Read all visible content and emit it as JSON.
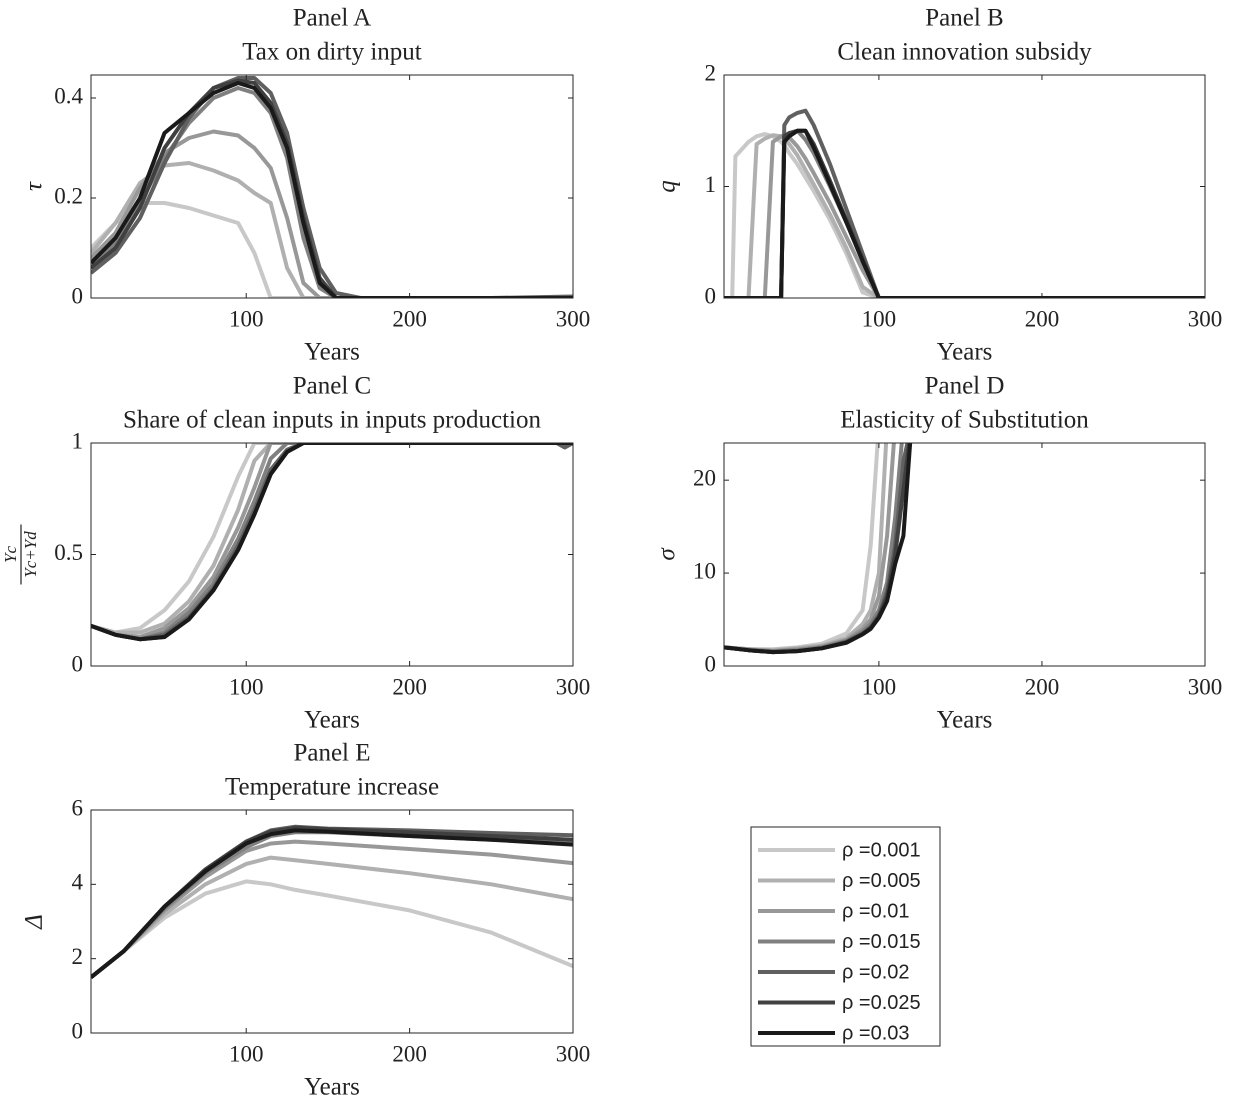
{
  "chart_data": [
    {
      "type": "line",
      "title": "Panel A",
      "subtitle": "Tax on dirty input",
      "xlabel": "Years",
      "ylabel": "τ",
      "x": [
        5,
        20,
        35,
        50,
        65,
        80,
        95,
        105,
        115,
        125,
        135,
        145,
        155,
        170,
        200,
        250,
        300
      ],
      "xlim": [
        5,
        300
      ],
      "xticks": [
        100,
        200,
        300
      ],
      "ylim": [
        0,
        0.446
      ],
      "yticks": [
        0,
        0.2,
        0.4
      ],
      "series": [
        {
          "color": "#c8c8c8",
          "values": [
            0.1,
            0.15,
            0.19,
            0.19,
            0.18,
            0.165,
            0.15,
            0.09,
            0,
            0,
            0,
            0,
            0,
            0,
            0,
            0,
            0
          ]
        },
        {
          "color": "#b0b0b0",
          "values": [
            0.09,
            0.15,
            0.23,
            0.265,
            0.27,
            0.255,
            0.235,
            0.21,
            0.19,
            0.06,
            0,
            0,
            0,
            0,
            0,
            0,
            0
          ]
        },
        {
          "color": "#989898",
          "values": [
            0.08,
            0.13,
            0.22,
            0.29,
            0.32,
            0.333,
            0.325,
            0.3,
            0.26,
            0.16,
            0.03,
            0,
            0,
            0,
            0,
            0,
            0
          ]
        },
        {
          "color": "#808080",
          "values": [
            0.06,
            0.11,
            0.19,
            0.28,
            0.35,
            0.4,
            0.42,
            0.41,
            0.37,
            0.28,
            0.12,
            0.02,
            0,
            0,
            0,
            0,
            0
          ]
        },
        {
          "color": "#606060",
          "values": [
            0.05,
            0.09,
            0.16,
            0.27,
            0.36,
            0.42,
            0.44,
            0.44,
            0.41,
            0.33,
            0.18,
            0.06,
            0.01,
            0,
            0,
            0,
            0.003
          ]
        },
        {
          "color": "#404040",
          "values": [
            0.06,
            0.1,
            0.18,
            0.3,
            0.37,
            0.42,
            0.435,
            0.43,
            0.39,
            0.31,
            0.16,
            0.04,
            0,
            0,
            0,
            0,
            0
          ]
        },
        {
          "color": "#1a1a1a",
          "values": [
            0.07,
            0.12,
            0.2,
            0.33,
            0.37,
            0.41,
            0.43,
            0.42,
            0.38,
            0.3,
            0.15,
            0.03,
            0,
            0,
            0,
            0,
            0
          ]
        }
      ]
    },
    {
      "type": "line",
      "title": "Panel B",
      "subtitle": "Clean innovation subsidy",
      "xlabel": "Years",
      "ylabel": "q",
      "x": [
        5,
        10,
        12,
        20,
        25,
        30,
        35,
        40,
        42,
        45,
        50,
        55,
        60,
        70,
        80,
        90,
        100,
        150,
        200,
        300
      ],
      "xlim": [
        5,
        300
      ],
      "xticks": [
        100,
        200,
        300
      ],
      "ylim": [
        0,
        2
      ],
      "yticks": [
        0,
        1,
        2
      ],
      "series": [
        {
          "color": "#c8c8c8",
          "values": [
            0,
            0,
            1.27,
            1.4,
            1.45,
            1.47,
            1.45,
            1.4,
            1.37,
            1.3,
            1.2,
            1.08,
            0.96,
            0.7,
            0.4,
            0.05,
            0,
            0,
            0,
            0
          ]
        },
        {
          "color": "#b0b0b0",
          "values": [
            0,
            0,
            0,
            0,
            1.38,
            1.43,
            1.46,
            1.45,
            1.43,
            1.38,
            1.28,
            1.15,
            1.02,
            0.75,
            0.45,
            0.1,
            0,
            0,
            0,
            0
          ]
        },
        {
          "color": "#989898",
          "values": [
            0,
            0,
            0,
            0,
            0,
            0,
            1.4,
            1.45,
            1.46,
            1.44,
            1.36,
            1.25,
            1.12,
            0.85,
            0.55,
            0.25,
            0,
            0,
            0,
            0
          ]
        },
        {
          "color": "#808080",
          "values": [
            0,
            0,
            0,
            0,
            0,
            0,
            0,
            0,
            1.45,
            1.47,
            1.5,
            1.42,
            1.3,
            1.0,
            0.68,
            0.35,
            0,
            0,
            0,
            0
          ]
        },
        {
          "color": "#606060",
          "values": [
            0,
            0,
            0,
            0,
            0,
            0,
            0,
            0,
            1.55,
            1.62,
            1.66,
            1.68,
            1.55,
            1.2,
            0.8,
            0.4,
            0,
            0,
            0,
            0
          ]
        },
        {
          "color": "#404040",
          "values": [
            0,
            0,
            0,
            0,
            0,
            0,
            0,
            0,
            1.45,
            1.48,
            1.5,
            1.5,
            1.38,
            1.05,
            0.7,
            0.35,
            0,
            0,
            0,
            0
          ]
        },
        {
          "color": "#1a1a1a",
          "values": [
            0,
            0,
            0,
            0,
            0,
            0,
            0,
            0,
            1.4,
            1.45,
            1.5,
            1.5,
            1.35,
            1.02,
            0.68,
            0.33,
            0,
            0,
            0,
            0
          ]
        }
      ]
    },
    {
      "type": "line",
      "title": "Panel C",
      "subtitle": "Share of clean inputs in inputs production",
      "xlabel": "Years",
      "ylabel_numerator": "Yc",
      "ylabel_denominator": "Yc+Yd",
      "x": [
        5,
        20,
        35,
        50,
        65,
        80,
        95,
        105,
        115,
        125,
        135,
        150,
        200,
        250,
        290,
        295,
        300
      ],
      "xlim": [
        5,
        300
      ],
      "xticks": [
        100,
        200,
        300
      ],
      "ylim": [
        0,
        1
      ],
      "yticks": [
        0,
        0.5,
        1
      ],
      "series": [
        {
          "color": "#c8c8c8",
          "values": [
            0.18,
            0.15,
            0.17,
            0.25,
            0.38,
            0.58,
            0.85,
            1,
            1,
            1,
            1,
            1,
            1,
            1,
            1,
            1,
            1
          ]
        },
        {
          "color": "#b0b0b0",
          "values": [
            0.18,
            0.15,
            0.15,
            0.19,
            0.29,
            0.45,
            0.7,
            0.92,
            1,
            1,
            1,
            1,
            1,
            1,
            1,
            1,
            1
          ]
        },
        {
          "color": "#989898",
          "values": [
            0.18,
            0.14,
            0.13,
            0.17,
            0.26,
            0.4,
            0.62,
            0.8,
            1,
            1,
            1,
            1,
            1,
            1,
            1,
            1,
            1
          ]
        },
        {
          "color": "#808080",
          "values": [
            0.18,
            0.14,
            0.12,
            0.15,
            0.24,
            0.37,
            0.57,
            0.74,
            0.93,
            1,
            1,
            1,
            1,
            1,
            1,
            1,
            1
          ]
        },
        {
          "color": "#606060",
          "values": [
            0.18,
            0.14,
            0.12,
            0.14,
            0.22,
            0.35,
            0.54,
            0.7,
            0.88,
            0.97,
            1,
            1,
            1,
            1,
            1,
            0.98,
            1
          ]
        },
        {
          "color": "#404040",
          "values": [
            0.18,
            0.14,
            0.12,
            0.13,
            0.21,
            0.34,
            0.52,
            0.68,
            0.86,
            0.96,
            1,
            1,
            1,
            1,
            1,
            1,
            1
          ]
        },
        {
          "color": "#1a1a1a",
          "values": [
            0.18,
            0.14,
            0.12,
            0.13,
            0.21,
            0.34,
            0.52,
            0.68,
            0.86,
            0.96,
            1,
            1,
            1,
            1,
            1,
            1,
            1
          ]
        }
      ]
    },
    {
      "type": "line",
      "title": "Panel D",
      "subtitle": "Elasticity of Substitution",
      "xlabel": "Years",
      "ylabel": "σ",
      "x": [
        5,
        20,
        35,
        50,
        65,
        80,
        90,
        95,
        100,
        105,
        110,
        115,
        120,
        125,
        150,
        200,
        300
      ],
      "xlim": [
        5,
        300
      ],
      "xticks": [
        100,
        200,
        300
      ],
      "ylim": [
        0,
        24
      ],
      "yticks": [
        0,
        10,
        20
      ],
      "series": [
        {
          "color": "#c8c8c8",
          "values": [
            2,
            1.8,
            1.8,
            2,
            2.4,
            3.5,
            6,
            13,
            26,
            null,
            null,
            null,
            null,
            null,
            null,
            null,
            null
          ]
        },
        {
          "color": "#b0b0b0",
          "values": [
            2,
            1.8,
            1.7,
            1.9,
            2.2,
            3,
            4.5,
            6,
            10,
            26,
            null,
            null,
            null,
            null,
            null,
            null,
            null
          ]
        },
        {
          "color": "#989898",
          "values": [
            2,
            1.8,
            1.6,
            1.8,
            2.1,
            2.8,
            4,
            5,
            7.5,
            14,
            26,
            null,
            null,
            null,
            null,
            null,
            null
          ]
        },
        {
          "color": "#808080",
          "values": [
            2,
            1.7,
            1.6,
            1.7,
            2,
            2.7,
            3.7,
            4.5,
            6,
            9,
            16,
            26,
            null,
            null,
            null,
            null,
            null
          ]
        },
        {
          "color": "#606060",
          "values": [
            2,
            1.7,
            1.5,
            1.6,
            1.9,
            2.6,
            3.5,
            4.2,
            5.5,
            8,
            13,
            22,
            26,
            null,
            null,
            null,
            null
          ]
        },
        {
          "color": "#404040",
          "values": [
            2,
            1.7,
            1.5,
            1.6,
            1.9,
            2.55,
            3.45,
            4.1,
            5.3,
            7.5,
            12,
            19,
            26,
            null,
            null,
            null,
            null
          ]
        },
        {
          "color": "#1a1a1a",
          "values": [
            2,
            1.7,
            1.5,
            1.6,
            1.9,
            2.5,
            3.4,
            4,
            5.2,
            7,
            11,
            14,
            26,
            null,
            null,
            null,
            null
          ]
        }
      ]
    },
    {
      "type": "line",
      "title": "Panel E",
      "subtitle": "Temperature increase",
      "xlabel": "Years",
      "ylabel": "Δ",
      "x": [
        5,
        25,
        50,
        75,
        100,
        115,
        130,
        150,
        200,
        250,
        300
      ],
      "xlim": [
        5,
        300
      ],
      "xticks": [
        100,
        200,
        300
      ],
      "ylim": [
        0,
        6
      ],
      "yticks": [
        0,
        2,
        4,
        6
      ],
      "series": [
        {
          "name": "ρ =0.001",
          "color": "#c8c8c8",
          "values": [
            1.5,
            2.2,
            3.1,
            3.75,
            4.08,
            4.0,
            3.85,
            3.7,
            3.3,
            2.7,
            1.8
          ]
        },
        {
          "name": "ρ =0.005",
          "color": "#b0b0b0",
          "values": [
            1.5,
            2.2,
            3.2,
            4.0,
            4.55,
            4.72,
            4.65,
            4.55,
            4.3,
            4.0,
            3.6
          ]
        },
        {
          "name": "ρ =0.01",
          "color": "#989898",
          "values": [
            1.5,
            2.2,
            3.3,
            4.2,
            4.9,
            5.1,
            5.15,
            5.1,
            4.95,
            4.8,
            4.57
          ]
        },
        {
          "name": "ρ =0.015",
          "color": "#808080",
          "values": [
            1.5,
            2.2,
            3.35,
            4.3,
            5.0,
            5.3,
            5.4,
            5.4,
            5.3,
            5.2,
            5.1
          ]
        },
        {
          "name": "ρ =0.02",
          "color": "#606060",
          "values": [
            1.5,
            2.2,
            3.4,
            4.4,
            5.15,
            5.45,
            5.55,
            5.5,
            5.45,
            5.38,
            5.32
          ]
        },
        {
          "name": "ρ =0.025",
          "color": "#404040",
          "values": [
            1.5,
            2.2,
            3.4,
            4.4,
            5.15,
            5.42,
            5.52,
            5.48,
            5.4,
            5.3,
            5.2
          ]
        },
        {
          "name": "ρ =0.03",
          "color": "#1a1a1a",
          "values": [
            1.5,
            2.2,
            3.4,
            4.35,
            5.1,
            5.35,
            5.45,
            5.42,
            5.3,
            5.2,
            5.07
          ]
        }
      ]
    }
  ]
}
